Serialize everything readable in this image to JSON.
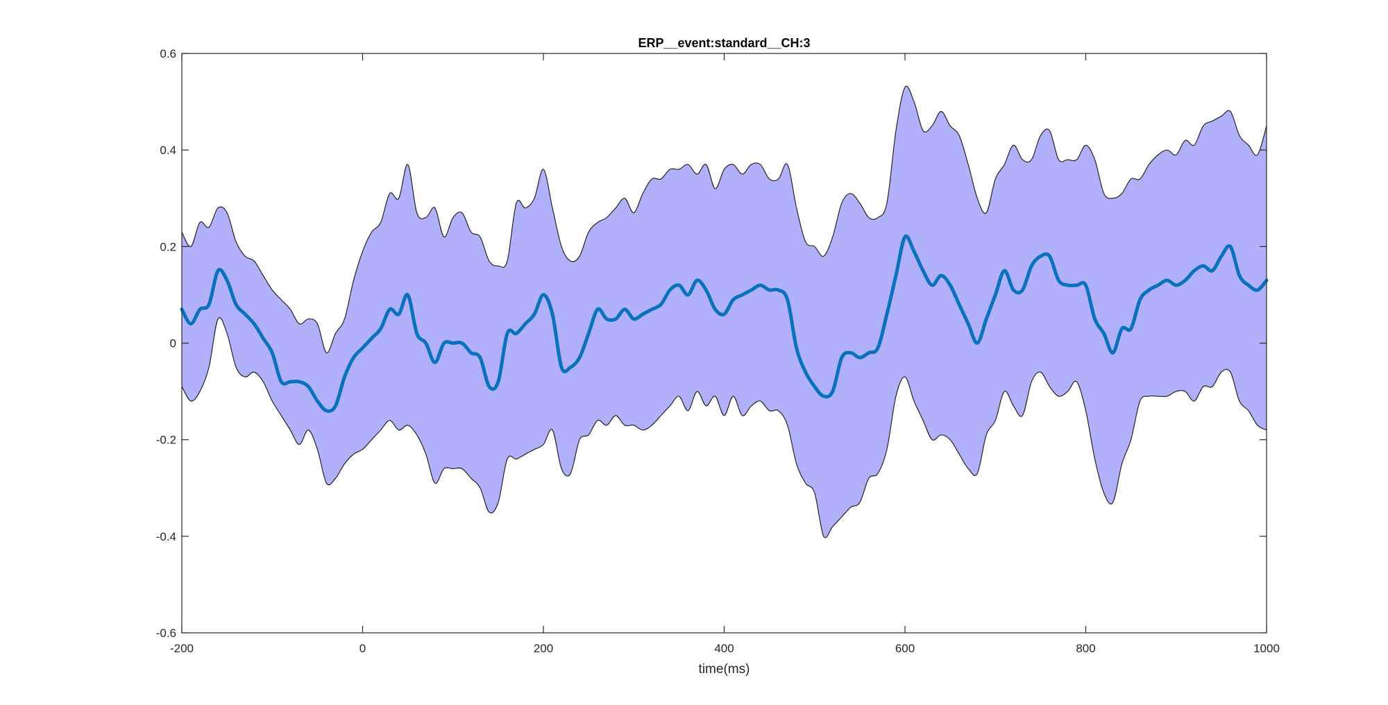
{
  "chart_data": {
    "type": "area",
    "title": "ERP__event:standard__CH:3",
    "xlabel": "time(ms)",
    "ylabel": "",
    "xlim": [
      -200,
      1000
    ],
    "ylim": [
      -0.6,
      0.6
    ],
    "xticks": [
      "-200",
      "0",
      "200",
      "400",
      "600",
      "800",
      "1000"
    ],
    "yticks": [
      "0.6",
      "0.4",
      "0.2",
      "0",
      "-0.2",
      "-0.4",
      "-0.6"
    ],
    "grid": false,
    "colors": {
      "band_fill": "#b0b0fb",
      "band_edge": "#222222",
      "mean_line": "#0a72bd",
      "axes": "#262626"
    },
    "x": [
      -200,
      -190,
      -180,
      -170,
      -160,
      -150,
      -140,
      -130,
      -120,
      -110,
      -100,
      -90,
      -80,
      -70,
      -60,
      -50,
      -40,
      -30,
      -20,
      -10,
      0,
      10,
      20,
      30,
      40,
      50,
      60,
      70,
      80,
      90,
      100,
      110,
      120,
      130,
      140,
      150,
      160,
      170,
      180,
      190,
      200,
      210,
      220,
      230,
      240,
      250,
      260,
      270,
      280,
      290,
      300,
      310,
      320,
      330,
      340,
      350,
      360,
      370,
      380,
      390,
      400,
      410,
      420,
      430,
      440,
      450,
      460,
      470,
      480,
      490,
      500,
      510,
      520,
      530,
      540,
      550,
      560,
      570,
      580,
      590,
      600,
      610,
      620,
      630,
      640,
      650,
      660,
      670,
      680,
      690,
      700,
      710,
      720,
      730,
      740,
      750,
      760,
      770,
      780,
      790,
      800,
      810,
      820,
      830,
      840,
      850,
      860,
      870,
      880,
      890,
      900,
      910,
      920,
      930,
      940,
      950,
      960,
      970,
      980,
      990,
      1000
    ],
    "series": [
      {
        "role": "upper",
        "values": [
          0.23,
          0.2,
          0.25,
          0.24,
          0.28,
          0.27,
          0.21,
          0.18,
          0.17,
          0.14,
          0.11,
          0.09,
          0.07,
          0.04,
          0.05,
          0.04,
          -0.02,
          0.02,
          0.05,
          0.13,
          0.19,
          0.23,
          0.25,
          0.31,
          0.3,
          0.37,
          0.27,
          0.26,
          0.28,
          0.22,
          0.26,
          0.27,
          0.23,
          0.22,
          0.17,
          0.16,
          0.17,
          0.29,
          0.28,
          0.3,
          0.36,
          0.28,
          0.2,
          0.17,
          0.18,
          0.23,
          0.25,
          0.26,
          0.28,
          0.3,
          0.27,
          0.31,
          0.34,
          0.34,
          0.36,
          0.36,
          0.37,
          0.35,
          0.37,
          0.32,
          0.36,
          0.37,
          0.35,
          0.37,
          0.37,
          0.34,
          0.34,
          0.37,
          0.28,
          0.21,
          0.2,
          0.18,
          0.22,
          0.29,
          0.31,
          0.29,
          0.26,
          0.26,
          0.29,
          0.44,
          0.53,
          0.5,
          0.44,
          0.45,
          0.48,
          0.45,
          0.43,
          0.37,
          0.3,
          0.27,
          0.34,
          0.37,
          0.41,
          0.38,
          0.38,
          0.43,
          0.44,
          0.38,
          0.38,
          0.38,
          0.41,
          0.38,
          0.31,
          0.3,
          0.31,
          0.34,
          0.34,
          0.37,
          0.39,
          0.4,
          0.39,
          0.42,
          0.41,
          0.45,
          0.46,
          0.47,
          0.48,
          0.43,
          0.41,
          0.39,
          0.45
        ]
      },
      {
        "role": "lower",
        "values": [
          -0.09,
          -0.12,
          -0.1,
          -0.05,
          0.05,
          0.02,
          -0.05,
          -0.07,
          -0.06,
          -0.08,
          -0.12,
          -0.15,
          -0.18,
          -0.21,
          -0.18,
          -0.22,
          -0.29,
          -0.28,
          -0.25,
          -0.23,
          -0.22,
          -0.2,
          -0.18,
          -0.16,
          -0.18,
          -0.17,
          -0.19,
          -0.23,
          -0.29,
          -0.26,
          -0.26,
          -0.26,
          -0.28,
          -0.3,
          -0.35,
          -0.33,
          -0.24,
          -0.24,
          -0.23,
          -0.22,
          -0.21,
          -0.18,
          -0.26,
          -0.27,
          -0.2,
          -0.19,
          -0.16,
          -0.17,
          -0.15,
          -0.17,
          -0.17,
          -0.18,
          -0.17,
          -0.15,
          -0.13,
          -0.11,
          -0.14,
          -0.1,
          -0.13,
          -0.11,
          -0.15,
          -0.11,
          -0.15,
          -0.13,
          -0.12,
          -0.14,
          -0.14,
          -0.17,
          -0.25,
          -0.29,
          -0.31,
          -0.4,
          -0.38,
          -0.36,
          -0.34,
          -0.33,
          -0.28,
          -0.27,
          -0.22,
          -0.11,
          -0.07,
          -0.12,
          -0.16,
          -0.2,
          -0.19,
          -0.2,
          -0.23,
          -0.26,
          -0.27,
          -0.19,
          -0.16,
          -0.1,
          -0.13,
          -0.15,
          -0.08,
          -0.06,
          -0.09,
          -0.11,
          -0.1,
          -0.08,
          -0.14,
          -0.24,
          -0.31,
          -0.33,
          -0.25,
          -0.2,
          -0.12,
          -0.11,
          -0.11,
          -0.11,
          -0.1,
          -0.1,
          -0.12,
          -0.09,
          -0.09,
          -0.06,
          -0.06,
          -0.12,
          -0.14,
          -0.17,
          -0.18
        ]
      },
      {
        "role": "mean",
        "values": [
          0.07,
          0.04,
          0.07,
          0.08,
          0.15,
          0.13,
          0.08,
          0.06,
          0.04,
          0.01,
          -0.02,
          -0.08,
          -0.08,
          -0.08,
          -0.09,
          -0.12,
          -0.14,
          -0.13,
          -0.07,
          -0.03,
          -0.01,
          0.01,
          0.03,
          0.07,
          0.06,
          0.1,
          0.02,
          0.0,
          -0.04,
          0.0,
          0.0,
          0.0,
          -0.02,
          -0.03,
          -0.09,
          -0.08,
          0.02,
          0.02,
          0.04,
          0.06,
          0.1,
          0.06,
          -0.05,
          -0.05,
          -0.03,
          0.02,
          0.07,
          0.05,
          0.05,
          0.07,
          0.05,
          0.06,
          0.07,
          0.08,
          0.11,
          0.12,
          0.1,
          0.13,
          0.11,
          0.07,
          0.06,
          0.09,
          0.1,
          0.11,
          0.12,
          0.11,
          0.11,
          0.09,
          -0.01,
          -0.06,
          -0.09,
          -0.11,
          -0.1,
          -0.03,
          -0.02,
          -0.03,
          -0.02,
          -0.01,
          0.06,
          0.14,
          0.22,
          0.19,
          0.15,
          0.12,
          0.14,
          0.12,
          0.08,
          0.04,
          0.0,
          0.05,
          0.1,
          0.15,
          0.11,
          0.11,
          0.16,
          0.18,
          0.18,
          0.13,
          0.12,
          0.12,
          0.12,
          0.05,
          0.02,
          -0.02,
          0.03,
          0.03,
          0.09,
          0.11,
          0.12,
          0.13,
          0.12,
          0.13,
          0.15,
          0.16,
          0.15,
          0.18,
          0.2,
          0.14,
          0.12,
          0.11,
          0.13
        ]
      }
    ]
  }
}
